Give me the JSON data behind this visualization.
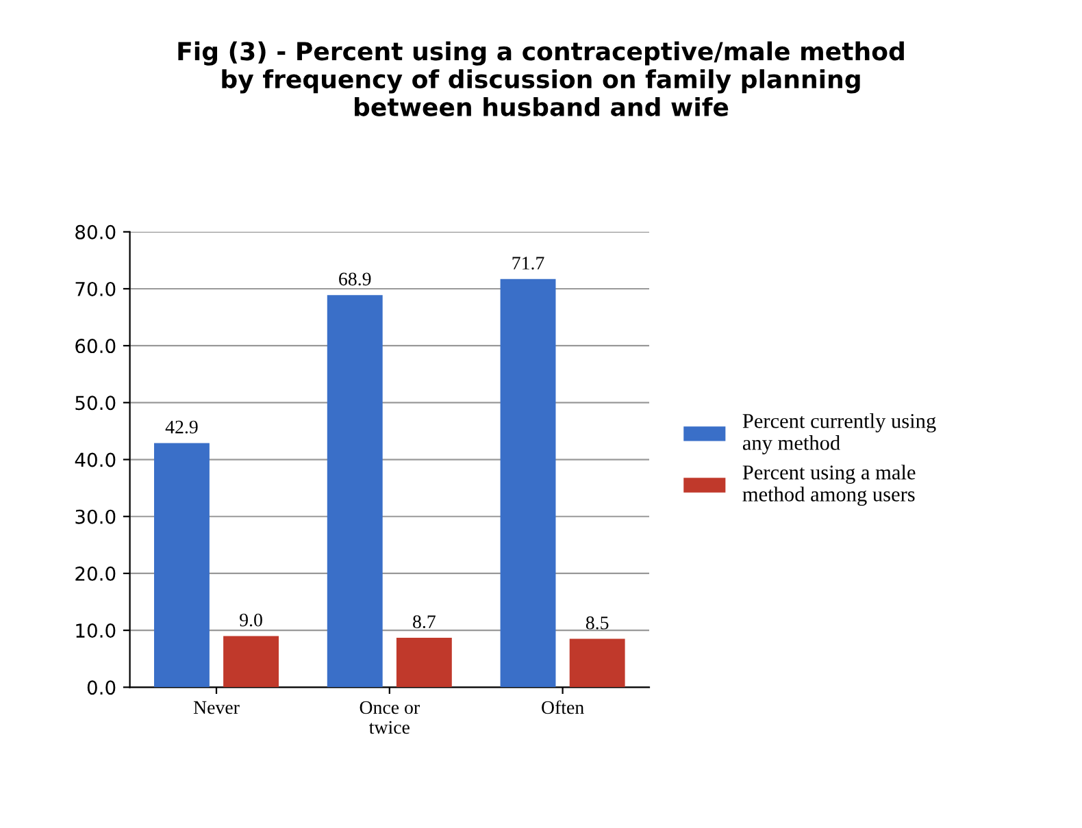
{
  "chart_data": {
    "type": "bar",
    "title": "Fig (3) - Percent using a contraceptive/male method\nby frequency of discussion on family planning\nbetween husband and wife",
    "categories": [
      "Never",
      "Once or\ntwice",
      "Often"
    ],
    "series": [
      {
        "name": "Percent currently using\nany method",
        "color": "#3a6fc8",
        "values": [
          42.9,
          68.9,
          71.7
        ],
        "value_labels": [
          "42.9",
          "68.9",
          "71.7"
        ]
      },
      {
        "name": "Percent using a male\nmethod among users",
        "color": "#c0392b",
        "values": [
          9.0,
          8.7,
          8.5
        ],
        "value_labels": [
          "9.0",
          "8.7",
          "8.5"
        ]
      }
    ],
    "ylim": [
      0,
      80
    ],
    "yticks": [
      {
        "value": 0,
        "label": "0.0"
      },
      {
        "value": 10,
        "label": "10.0"
      },
      {
        "value": 20,
        "label": "20.0"
      },
      {
        "value": 30,
        "label": "30.0"
      },
      {
        "value": 40,
        "label": "40.0"
      },
      {
        "value": 50,
        "label": "50.0"
      },
      {
        "value": 60,
        "label": "60.0"
      },
      {
        "value": 70,
        "label": "70.0"
      },
      {
        "value": 80,
        "label": "80.0"
      }
    ],
    "grid": "y",
    "legend": "right"
  }
}
